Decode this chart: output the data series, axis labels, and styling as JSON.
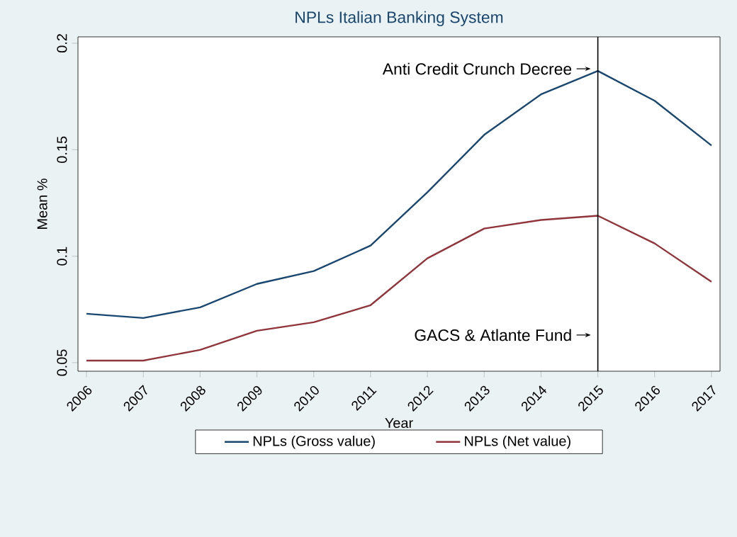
{
  "chart_data": {
    "type": "line",
    "title": "NPLs Italian Banking System",
    "xlabel": "Year",
    "ylabel": "Mean %",
    "x": [
      2006,
      2007,
      2008,
      2009,
      2010,
      2011,
      2012,
      2013,
      2014,
      2015,
      2016,
      2017
    ],
    "series": [
      {
        "name": "NPLs (Gross value)",
        "color": "#1a476f",
        "values": [
          0.073,
          0.071,
          0.076,
          0.087,
          0.093,
          0.105,
          0.13,
          0.157,
          0.176,
          0.187,
          0.173,
          0.152
        ]
      },
      {
        "name": "NPLs (Net value)",
        "color": "#90353b",
        "values": [
          0.051,
          0.051,
          0.056,
          0.065,
          0.069,
          0.077,
          0.099,
          0.113,
          0.117,
          0.119,
          0.106,
          0.088
        ]
      }
    ],
    "xlim": [
      2005.85,
      2017.15
    ],
    "ylim": [
      0.046,
      0.203
    ],
    "xticks": [
      2006,
      2007,
      2008,
      2009,
      2010,
      2011,
      2012,
      2013,
      2014,
      2015,
      2016,
      2017
    ],
    "yticks": [
      0.05,
      0.1,
      0.15,
      0.2
    ],
    "ref_lines": [
      {
        "axis": "x",
        "value": 2015,
        "color": "#000000"
      }
    ],
    "annotations": [
      {
        "text": "Anti Credit Crunch Decree",
        "x": 2015,
        "y": 0.188
      },
      {
        "text": "GACS & Atlante Fund",
        "x": 2015,
        "y": 0.063
      }
    ],
    "legend": "bottom",
    "grid": false,
    "marker": "none",
    "line_style": "solid"
  }
}
